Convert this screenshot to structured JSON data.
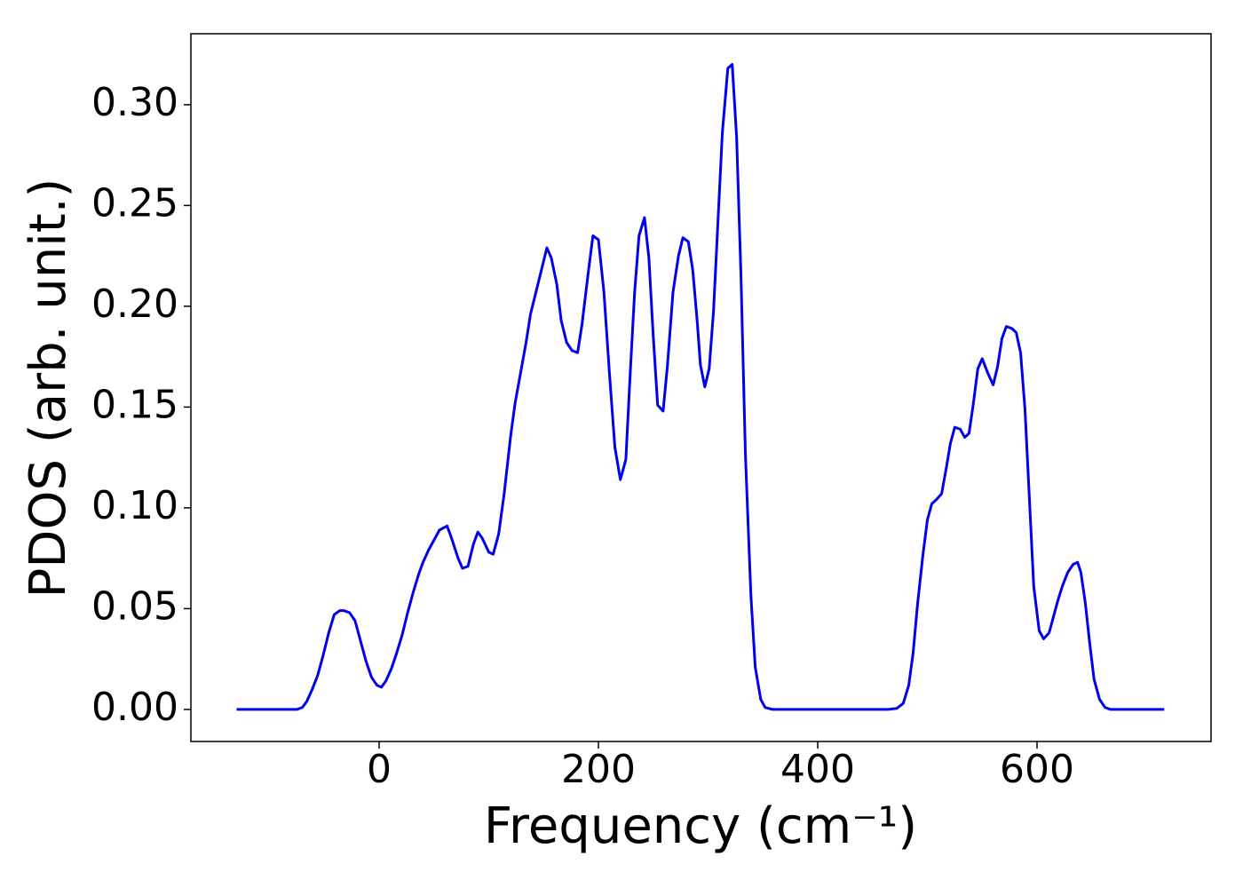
{
  "chart_data": {
    "type": "line",
    "xlabel": "Frequency (cm⁻¹)",
    "ylabel": "PDOS (arb. unit.)",
    "x": [
      -130,
      -75,
      -70,
      -66,
      -61,
      -56,
      -51,
      -46,
      -41,
      -36,
      -32,
      -27,
      -22,
      -17,
      -12,
      -7,
      -2,
      2,
      6,
      11,
      16,
      21,
      26,
      31,
      36,
      40,
      45,
      50,
      55,
      62,
      66,
      72,
      76,
      81,
      86,
      90,
      94,
      100,
      104,
      109,
      114,
      120,
      124,
      129,
      134,
      138,
      143,
      148,
      153,
      157,
      162,
      166,
      171,
      176,
      181,
      185,
      191,
      195,
      200,
      205,
      210,
      215,
      220,
      225,
      229,
      233,
      237,
      242,
      246,
      250,
      254,
      259,
      263,
      268,
      273,
      277,
      282,
      286,
      290,
      293,
      297,
      301,
      305,
      309,
      313,
      318,
      322,
      326,
      330,
      334,
      339,
      343,
      348,
      352,
      359,
      464,
      472,
      478,
      483,
      487,
      491,
      496,
      500,
      504,
      508,
      513,
      517,
      521,
      525,
      530,
      534,
      538,
      542,
      546,
      550,
      555,
      560,
      564,
      568,
      572,
      577,
      581,
      585,
      589,
      593,
      597,
      602,
      606,
      611,
      615,
      619,
      623,
      628,
      633,
      637,
      640,
      644,
      648,
      652,
      657,
      662,
      667,
      716
    ],
    "series": [
      {
        "name": "PDOS",
        "color": "#0000ee",
        "values": [
          0,
          0,
          0.001,
          0.004,
          0.01,
          0.017,
          0.027,
          0.038,
          0.047,
          0.049,
          0.049,
          0.048,
          0.044,
          0.034,
          0.024,
          0.016,
          0.012,
          0.011,
          0.014,
          0.02,
          0.028,
          0.037,
          0.048,
          0.058,
          0.067,
          0.073,
          0.079,
          0.084,
          0.089,
          0.091,
          0.085,
          0.075,
          0.07,
          0.071,
          0.082,
          0.088,
          0.085,
          0.078,
          0.077,
          0.087,
          0.107,
          0.136,
          0.152,
          0.167,
          0.182,
          0.196,
          0.207,
          0.218,
          0.229,
          0.224,
          0.211,
          0.193,
          0.182,
          0.178,
          0.177,
          0.191,
          0.218,
          0.235,
          0.233,
          0.207,
          0.167,
          0.13,
          0.114,
          0.124,
          0.167,
          0.207,
          0.235,
          0.244,
          0.224,
          0.185,
          0.151,
          0.148,
          0.171,
          0.207,
          0.225,
          0.234,
          0.232,
          0.218,
          0.193,
          0.171,
          0.16,
          0.169,
          0.198,
          0.242,
          0.286,
          0.318,
          0.32,
          0.284,
          0.215,
          0.127,
          0.057,
          0.021,
          0.005,
          0.001,
          0,
          0,
          0.0005,
          0.003,
          0.012,
          0.028,
          0.052,
          0.077,
          0.094,
          0.102,
          0.104,
          0.107,
          0.119,
          0.132,
          0.14,
          0.139,
          0.135,
          0.137,
          0.152,
          0.169,
          0.174,
          0.167,
          0.161,
          0.17,
          0.184,
          0.19,
          0.189,
          0.187,
          0.177,
          0.149,
          0.105,
          0.061,
          0.039,
          0.035,
          0.038,
          0.046,
          0.054,
          0.061,
          0.068,
          0.072,
          0.073,
          0.068,
          0.053,
          0.033,
          0.015,
          0.005,
          0.001,
          0,
          0
        ]
      }
    ],
    "xlim": [
      -171.7,
      758.7
    ],
    "ylim": [
      -0.0159,
      0.3352
    ],
    "xticks": [
      0,
      200,
      400,
      600
    ],
    "yticks": [
      {
        "value": 0,
        "label": "0.00"
      },
      {
        "value": 0.05,
        "label": "0.05"
      },
      {
        "value": 0.1,
        "label": "0.10"
      },
      {
        "value": 0.15,
        "label": "0.15"
      },
      {
        "value": 0.2,
        "label": "0.20"
      },
      {
        "value": 0.25,
        "label": "0.25"
      },
      {
        "value": 0.3,
        "label": "0.30"
      }
    ]
  }
}
